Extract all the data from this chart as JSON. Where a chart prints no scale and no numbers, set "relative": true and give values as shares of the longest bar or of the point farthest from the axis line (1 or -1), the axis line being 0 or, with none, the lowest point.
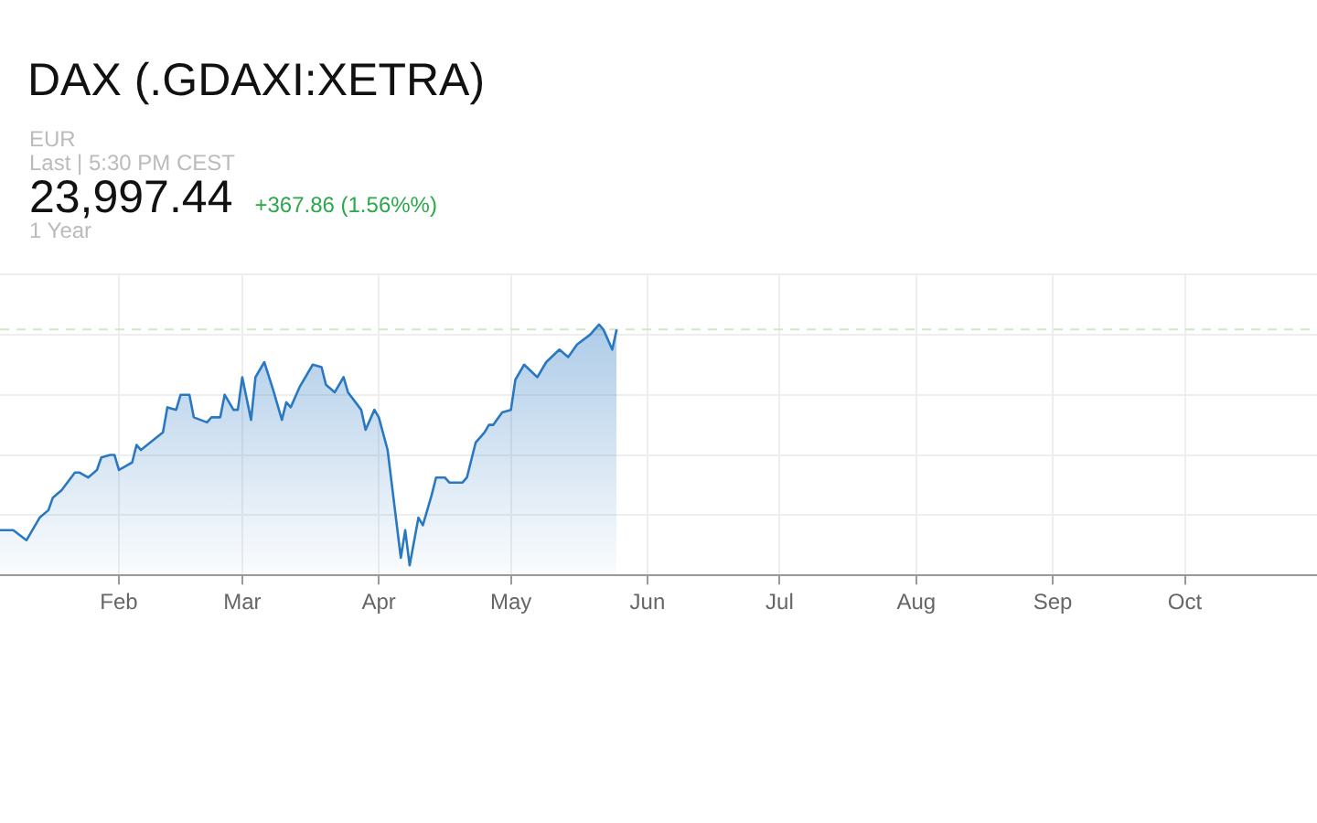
{
  "chart_data": {
    "type": "area",
    "title": "DAX (.GDAXI:XETRA)",
    "annotations": [
      "EUR",
      "Last | 5:30 PM CEST",
      "23,997.44",
      "+367.86 (1.56%%)",
      "1 Year"
    ],
    "relative": true,
    "grid": true,
    "xlim": [
      "--01-05",
      "--10-31"
    ],
    "xticks": [
      {
        "value": "--02-01",
        "label": "Feb"
      },
      {
        "value": "--03-01",
        "label": "Mar"
      },
      {
        "value": "--04-01",
        "label": "Apr"
      },
      {
        "value": "--05-01",
        "label": "May"
      },
      {
        "value": "--06-01",
        "label": "Jun"
      },
      {
        "value": "--07-01",
        "label": "Jul"
      },
      {
        "value": "--08-01",
        "label": "Aug"
      },
      {
        "value": "--09-01",
        "label": "Sep"
      },
      {
        "value": "--10-01",
        "label": "Oct"
      }
    ],
    "ref_lines": [
      {
        "axis": "y",
        "value": 0.98,
        "color": "#cfe8c8",
        "line_style": "dashed"
      }
    ],
    "series": [
      {
        "color": "#2a78c2",
        "x": [
          "--01-05",
          "--01-08",
          "--01-11",
          "--01-12",
          "--01-14",
          "--01-16",
          "--01-17",
          "--01-19",
          "--01-22",
          "--01-23",
          "--01-25",
          "--01-27",
          "--01-28",
          "--01-30",
          "--01-31",
          "--02-01",
          "--02-04",
          "--02-05",
          "--02-06",
          "--02-11",
          "--02-12",
          "--02-14",
          "--02-15",
          "--02-17",
          "--02-18",
          "--02-21",
          "--02-22",
          "--02-24",
          "--02-25",
          "--02-27",
          "--02-28",
          "--03-01",
          "--03-03",
          "--03-04",
          "--03-06",
          "--03-08",
          "--03-10",
          "--03-11",
          "--03-12",
          "--03-14",
          "--03-17",
          "--03-19",
          "--03-20",
          "--03-22",
          "--03-24",
          "--03-25",
          "--03-28",
          "--03-29",
          "--03-31",
          "--04-01",
          "--04-03",
          "--04-06",
          "--04-07",
          "--04-08",
          "--04-10",
          "--04-11",
          "--04-13",
          "--04-14",
          "--04-16",
          "--04-17",
          "--04-20",
          "--04-21",
          "--04-23",
          "--04-25",
          "--04-26",
          "--04-27",
          "--04-29",
          "--05-01",
          "--05-02",
          "--05-04",
          "--05-07",
          "--05-09",
          "--05-12",
          "--05-14",
          "--05-16",
          "--05-19",
          "--05-21",
          "--05-22",
          "--05-24",
          "--05-25"
        ],
        "values": [
          0.18,
          0.18,
          0.14,
          0.17,
          0.23,
          0.26,
          0.31,
          0.34,
          0.41,
          0.41,
          0.39,
          0.42,
          0.47,
          0.48,
          0.48,
          0.42,
          0.45,
          0.52,
          0.5,
          0.57,
          0.67,
          0.66,
          0.72,
          0.72,
          0.63,
          0.61,
          0.63,
          0.63,
          0.72,
          0.66,
          0.66,
          0.79,
          0.62,
          0.79,
          0.85,
          0.74,
          0.62,
          0.69,
          0.67,
          0.75,
          0.84,
          0.83,
          0.76,
          0.73,
          0.79,
          0.73,
          0.66,
          0.58,
          0.66,
          0.63,
          0.5,
          0.07,
          0.18,
          0.04,
          0.23,
          0.2,
          0.32,
          0.39,
          0.39,
          0.37,
          0.37,
          0.39,
          0.53,
          0.57,
          0.6,
          0.6,
          0.65,
          0.66,
          0.78,
          0.84,
          0.79,
          0.85,
          0.9,
          0.87,
          0.92,
          0.96,
          1.0,
          0.98,
          0.9,
          0.98
        ]
      }
    ]
  }
}
